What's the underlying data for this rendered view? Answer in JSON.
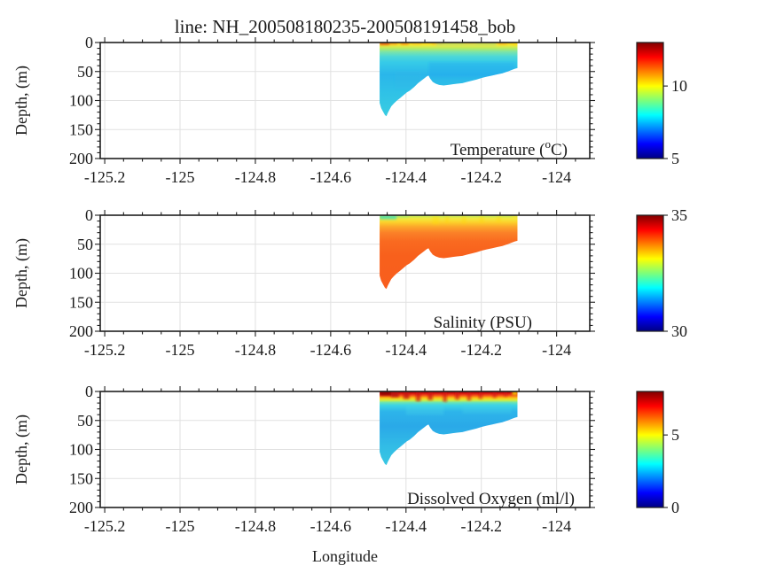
{
  "chart_data": {
    "type": "heatmap",
    "title": "line: NH_200508180235-200508191458_bob",
    "xlabel": "Longitude",
    "ylabel": "Depth, (m)",
    "x_tick_labels": [
      "-125.2",
      "-125",
      "-124.8",
      "-124.6",
      "-124.4",
      "-124.2",
      "-124"
    ],
    "x_tick_values": [
      -125.2,
      -125.0,
      -124.8,
      -124.6,
      -124.4,
      -124.2,
      -124.0
    ],
    "y_tick_labels": [
      "0",
      "50",
      "100",
      "150",
      "200"
    ],
    "y_tick_values": [
      0,
      50,
      100,
      150,
      200
    ],
    "xlim": [
      -125.212,
      -123.912
    ],
    "ylim": [
      0,
      200
    ],
    "x_minor_step": 0.05,
    "y_minor_step": 10,
    "grid": true,
    "grid_color": "#e1e1e1",
    "axis_color": "#202020",
    "legend_position": "right-colorbars",
    "colormap": "jet",
    "colormap_stops": [
      [
        0.0,
        "#000083"
      ],
      [
        0.125,
        "#0000ff"
      ],
      [
        0.375,
        "#00ffff"
      ],
      [
        0.5,
        "#7dff7a"
      ],
      [
        0.625,
        "#ffff00"
      ],
      [
        0.875,
        "#ff0000"
      ],
      [
        1.0,
        "#800000"
      ]
    ],
    "profile_depth_extent": 130,
    "transect": {
      "lon_min": -124.47,
      "lon_max": -124.104,
      "surface_depth": 0,
      "max_depth": 127,
      "bottom_profile": [
        [
          -124.47,
          104
        ],
        [
          -124.466,
          113
        ],
        [
          -124.461,
          119
        ],
        [
          -124.456,
          125
        ],
        [
          -124.452,
          127
        ],
        [
          -124.448,
          121
        ],
        [
          -124.444,
          116
        ],
        [
          -124.439,
          110
        ],
        [
          -124.432,
          105
        ],
        [
          -124.424,
          100
        ],
        [
          -124.416,
          96
        ],
        [
          -124.407,
          91
        ],
        [
          -124.398,
          86
        ],
        [
          -124.39,
          83
        ],
        [
          -124.379,
          77
        ],
        [
          -124.368,
          70
        ],
        [
          -124.358,
          65
        ],
        [
          -124.35,
          61
        ],
        [
          -124.344,
          58
        ],
        [
          -124.34,
          57
        ],
        [
          -124.336,
          62
        ],
        [
          -124.329,
          68
        ],
        [
          -124.321,
          71
        ],
        [
          -124.312,
          73
        ],
        [
          -124.3,
          74
        ],
        [
          -124.288,
          73
        ],
        [
          -124.276,
          72
        ],
        [
          -124.264,
          71
        ],
        [
          -124.25,
          70
        ],
        [
          -124.238,
          68
        ],
        [
          -124.226,
          66
        ],
        [
          -124.213,
          64
        ],
        [
          -124.199,
          61
        ],
        [
          -124.186,
          59
        ],
        [
          -124.172,
          57
        ],
        [
          -124.158,
          55
        ],
        [
          -124.144,
          53
        ],
        [
          -124.13,
          50
        ],
        [
          -124.118,
          47
        ],
        [
          -124.11,
          45
        ],
        [
          -124.104,
          44
        ]
      ]
    },
    "panels": [
      {
        "name": "temperature",
        "label_parts": {
          "pre": "Temperature (",
          "sup": "o",
          "post": "C)"
        },
        "clim": [
          5,
          13
        ],
        "colorbar_ticks": [
          {
            "label": "5",
            "value": 5
          },
          {
            "label": "10",
            "value": 10
          }
        ],
        "depth_color_stops": [
          [
            0,
            "#ffcf10"
          ],
          [
            5,
            "#f0e83a"
          ],
          [
            10,
            "#b8ec60"
          ],
          [
            16,
            "#7ce4a8"
          ],
          [
            24,
            "#4cd8d8"
          ],
          [
            34,
            "#36cbe8"
          ],
          [
            55,
            "#2ab6ea"
          ],
          [
            85,
            "#2fc1e7"
          ],
          [
            130,
            "#39cde1"
          ]
        ],
        "patches": [
          [
            -124.47,
            -124.444,
            0,
            4,
            "#dd3d0e",
            0.95
          ],
          [
            -124.444,
            -124.423,
            0,
            3,
            "#f07818",
            0.85
          ],
          [
            -124.414,
            -124.393,
            0,
            3.5,
            "#f2680f",
            0.8
          ],
          [
            -124.384,
            -124.36,
            0,
            2.5,
            "#f7a01e",
            0.6
          ],
          [
            -124.33,
            -124.3,
            0,
            2.5,
            "#f2991d",
            0.65
          ],
          [
            -124.32,
            -124.16,
            0,
            5,
            "#6fe0c0",
            0.38
          ],
          [
            -124.245,
            -124.215,
            0,
            2,
            "#ffc61a",
            0.55
          ],
          [
            -124.155,
            -124.133,
            0,
            3,
            "#f59a22",
            0.75
          ],
          [
            -124.118,
            -124.104,
            0,
            4,
            "#ffd80a",
            0.8
          ],
          [
            -124.34,
            -124.11,
            34,
            60,
            "#22a7ef",
            0.33
          ],
          [
            -124.43,
            -124.36,
            50,
            80,
            "#2cb9e9",
            0.25
          ]
        ]
      },
      {
        "name": "salinity",
        "label_parts": {
          "pre": "Salinity (PSU)",
          "sup": "",
          "post": ""
        },
        "clim": [
          30,
          35
        ],
        "colorbar_ticks": [
          {
            "label": "30",
            "value": 30
          },
          {
            "label": "35",
            "value": 35
          }
        ],
        "depth_color_stops": [
          [
            0,
            "#bfe95c"
          ],
          [
            6,
            "#f2e93e"
          ],
          [
            12,
            "#fcd22b"
          ],
          [
            20,
            "#fca62a"
          ],
          [
            30,
            "#fb8128"
          ],
          [
            45,
            "#f96a20"
          ],
          [
            70,
            "#f8601c"
          ],
          [
            130,
            "#f95e1e"
          ]
        ],
        "patches": [
          [
            -124.47,
            -124.425,
            0,
            7,
            "#54dfa6",
            0.92
          ],
          [
            -124.425,
            -124.394,
            0,
            4,
            "#9fe96d",
            0.7
          ],
          [
            -124.394,
            -124.36,
            0,
            3,
            "#c9ec50",
            0.5
          ],
          [
            -124.33,
            -124.312,
            1,
            16,
            "#ffd900",
            0.35
          ],
          [
            -124.296,
            -124.286,
            1,
            14,
            "#ffd200",
            0.3
          ],
          [
            -124.252,
            -124.24,
            1,
            15,
            "#ffd200",
            0.3
          ],
          [
            -124.205,
            -124.193,
            1,
            13,
            "#ffd200",
            0.3
          ],
          [
            -124.16,
            -124.148,
            1,
            12,
            "#ffd200",
            0.3
          ],
          [
            -124.118,
            -124.104,
            0,
            6,
            "#ffe22e",
            0.6
          ]
        ]
      },
      {
        "name": "dissolved-oxygen",
        "label_parts": {
          "pre": "Dissolved Oxygen (ml/l)",
          "sup": "",
          "post": ""
        },
        "clim": [
          0,
          8
        ],
        "colorbar_ticks": [
          {
            "label": "0",
            "value": 0
          },
          {
            "label": "5",
            "value": 5
          }
        ],
        "depth_color_stops": [
          [
            0,
            "#9e0a0a"
          ],
          [
            3,
            "#d41111"
          ],
          [
            7,
            "#f4581c"
          ],
          [
            11,
            "#fdc113"
          ],
          [
            15,
            "#d7ed3c"
          ],
          [
            19,
            "#6be4b4"
          ],
          [
            24,
            "#3bd3e5"
          ],
          [
            35,
            "#2db4ea"
          ],
          [
            60,
            "#2aa9e8"
          ],
          [
            95,
            "#32bce6"
          ],
          [
            130,
            "#3ac8e2"
          ]
        ],
        "patches": [
          [
            -124.47,
            -124.44,
            0,
            7,
            "#8c0606",
            0.9
          ],
          [
            -124.44,
            -124.419,
            0,
            10,
            "#b50b0b",
            0.8
          ],
          [
            -124.407,
            -124.391,
            0,
            13,
            "#c21111",
            0.75
          ],
          [
            -124.374,
            -124.361,
            0,
            17,
            "#cc1010",
            0.7
          ],
          [
            -124.342,
            -124.329,
            0,
            15,
            "#cc1010",
            0.7
          ],
          [
            -124.302,
            -124.291,
            0,
            18,
            "#d31414",
            0.65
          ],
          [
            -124.27,
            -124.258,
            0,
            14,
            "#cf1212",
            0.65
          ],
          [
            -124.238,
            -124.227,
            0,
            16,
            "#d31414",
            0.6
          ],
          [
            -124.207,
            -124.197,
            0,
            13,
            "#cf1212",
            0.6
          ],
          [
            -124.17,
            -124.159,
            0,
            11,
            "#d31414",
            0.6
          ],
          [
            -124.14,
            -124.131,
            0,
            9,
            "#cf1212",
            0.55
          ],
          [
            -124.118,
            -124.104,
            0,
            6,
            "#f5d800",
            0.9
          ],
          [
            -124.4,
            -124.3,
            22,
            40,
            "#49d6e8",
            0.3
          ],
          [
            -124.25,
            -124.12,
            20,
            38,
            "#40cfe9",
            0.3
          ]
        ]
      }
    ]
  }
}
